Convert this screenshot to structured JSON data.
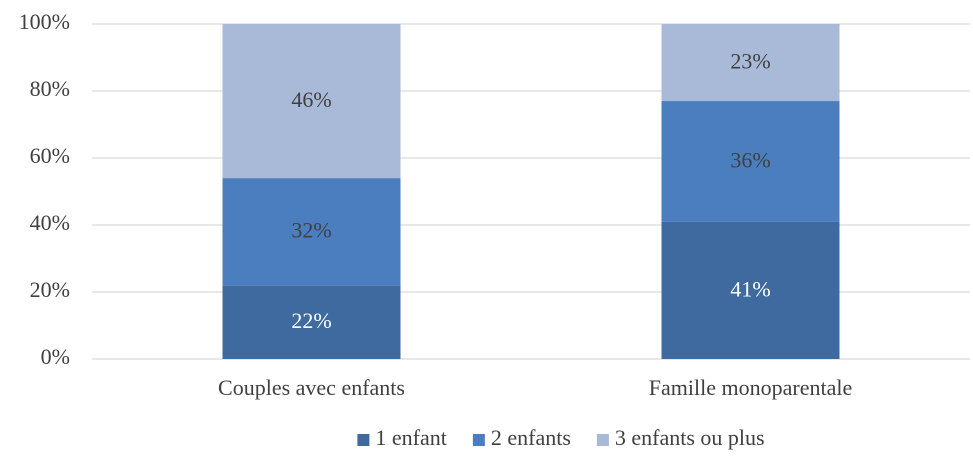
{
  "chart_data": {
    "type": "stacked_bar",
    "categories": [
      "Couples avec enfants",
      "Famille monoparentale"
    ],
    "series": [
      {
        "name": "1 enfant",
        "color": "#3f6a9f",
        "label_color": "#ffffff",
        "values": [
          22,
          41
        ],
        "value_labels": [
          "22%",
          "41%"
        ]
      },
      {
        "name": "2 enfants",
        "color": "#4b7ebe",
        "label_color": "#404040",
        "values": [
          32,
          36
        ],
        "value_labels": [
          "32%",
          "36%"
        ]
      },
      {
        "name": "3 enfants ou plus",
        "color": "#a9b9d8",
        "label_color": "#404040",
        "values": [
          46,
          23
        ],
        "value_labels": [
          "46%",
          "23%"
        ]
      }
    ],
    "ylim": [
      0,
      100
    ],
    "yticks": [
      {
        "value": 0,
        "label": "0%"
      },
      {
        "value": 20,
        "label": "20%"
      },
      {
        "value": 40,
        "label": "40%"
      },
      {
        "value": 60,
        "label": "60%"
      },
      {
        "value": 80,
        "label": "80%"
      },
      {
        "value": 100,
        "label": "100%"
      }
    ],
    "grid": true,
    "legend": "bottom"
  }
}
